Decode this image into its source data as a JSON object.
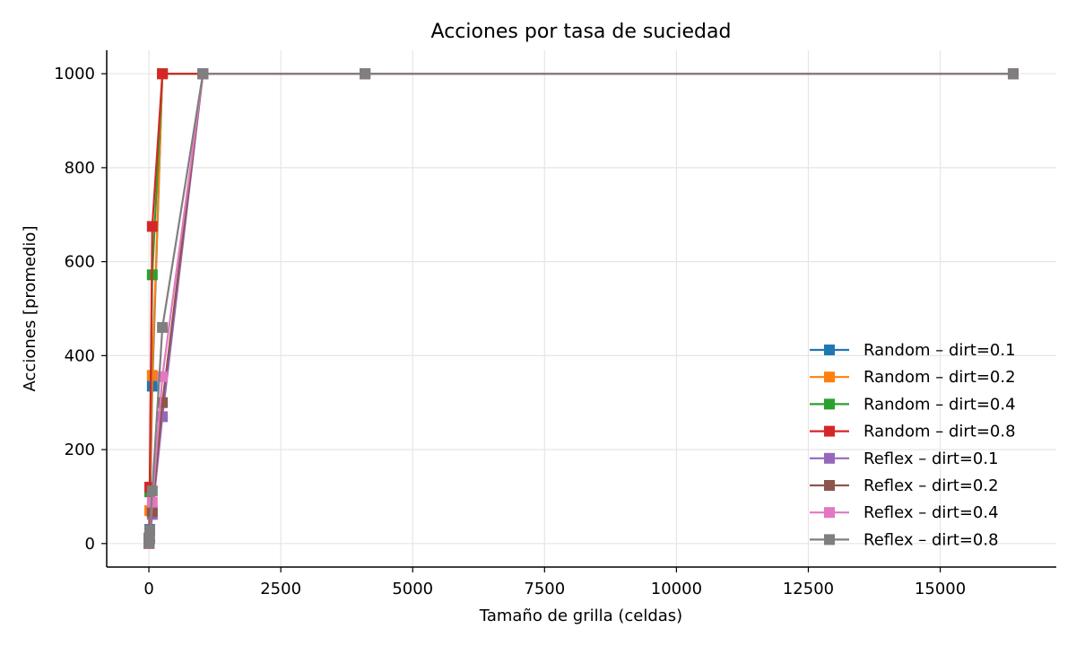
{
  "chart_data": {
    "type": "line",
    "title": "Acciones por tasa de suciedad",
    "xlabel": "Tamaño de grilla (celdas)",
    "ylabel": "Acciones [promedio]",
    "xlim": [
      -800,
      17200
    ],
    "ylim": [
      -50,
      1050
    ],
    "xticks": [
      0,
      2500,
      5000,
      7500,
      10000,
      12500,
      15000
    ],
    "yticks": [
      0,
      200,
      400,
      600,
      800,
      1000
    ],
    "grid": true,
    "legend_position": "lower-right",
    "x": [
      1,
      4,
      16,
      64,
      256,
      1024,
      4096,
      16384
    ],
    "series": [
      {
        "name": "Random – dirt=0.1",
        "color": "#1f77b4",
        "values": [
          0,
          5,
          30,
          335,
          1000,
          1000,
          1000,
          1000
        ]
      },
      {
        "name": "Random – dirt=0.2",
        "color": "#ff7f0e",
        "values": [
          0,
          8,
          70,
          358,
          1000,
          1000,
          1000,
          1000
        ]
      },
      {
        "name": "Random – dirt=0.4",
        "color": "#2ca02c",
        "values": [
          1,
          10,
          110,
          572,
          1000,
          1000,
          1000,
          1000
        ]
      },
      {
        "name": "Random – dirt=0.8",
        "color": "#d62728",
        "values": [
          1,
          12,
          120,
          675,
          1000,
          1000,
          1000,
          1000
        ]
      },
      {
        "name": "Reflex – dirt=0.1",
        "color": "#9467bd",
        "values": [
          0,
          3,
          10,
          62,
          270,
          1000,
          1000,
          1000
        ]
      },
      {
        "name": "Reflex – dirt=0.2",
        "color": "#8c564b",
        "values": [
          0,
          4,
          15,
          68,
          300,
          1000,
          1000,
          1000
        ]
      },
      {
        "name": "Reflex – dirt=0.4",
        "color": "#e377c2",
        "values": [
          0,
          5,
          20,
          88,
          355,
          1000,
          1000,
          1000
        ]
      },
      {
        "name": "Reflex – dirt=0.8",
        "color": "#7f7f7f",
        "values": [
          1,
          8,
          28,
          112,
          460,
          1000,
          1000,
          1000
        ]
      }
    ]
  }
}
